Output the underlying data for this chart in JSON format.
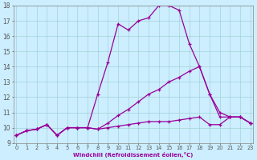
{
  "xlabel": "Windchill (Refroidissement éolien,°C)",
  "bg_color": "#cceeff",
  "line_color": "#990099",
  "series": [
    [
      9.5,
      9.8,
      9.9,
      10.2,
      9.5,
      10.0,
      10.0,
      10.0,
      9.9,
      10.0,
      10.1,
      10.2,
      10.3,
      10.4,
      10.4,
      10.4,
      10.5,
      10.6,
      10.7,
      10.2,
      10.2,
      10.7,
      10.7,
      10.3
    ],
    [
      9.5,
      9.8,
      9.9,
      10.2,
      9.5,
      10.0,
      10.0,
      10.0,
      9.9,
      10.3,
      10.8,
      11.2,
      11.7,
      12.2,
      12.5,
      13.0,
      13.3,
      13.7,
      14.0,
      12.2,
      10.7,
      10.7,
      10.7,
      10.3
    ],
    [
      9.5,
      9.8,
      9.9,
      10.2,
      9.5,
      10.0,
      10.0,
      10.0,
      12.2,
      14.3,
      16.8,
      16.4,
      17.0,
      17.2,
      18.0,
      18.0,
      17.7,
      15.5,
      14.0,
      12.2,
      11.0,
      10.7,
      10.7,
      10.3
    ]
  ],
  "xmin": 0,
  "xmax": 23,
  "ymin": 9,
  "ymax": 18,
  "yticks": [
    9,
    10,
    11,
    12,
    13,
    14,
    15,
    16,
    17,
    18
  ],
  "xticks": [
    0,
    1,
    2,
    3,
    4,
    5,
    6,
    7,
    8,
    9,
    10,
    11,
    12,
    13,
    14,
    15,
    16,
    17,
    18,
    19,
    20,
    21,
    22,
    23
  ]
}
